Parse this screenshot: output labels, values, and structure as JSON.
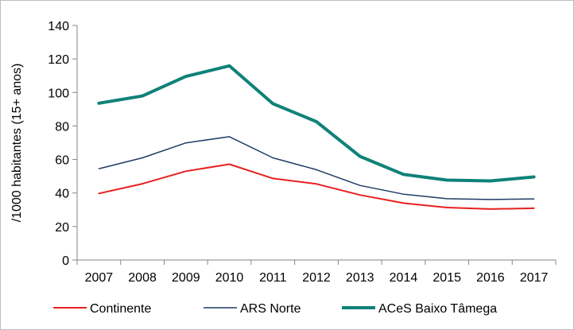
{
  "chart_data": {
    "type": "line",
    "title": "",
    "xlabel": "",
    "ylabel": "/1000 habitantes (15+ anos)",
    "ylim": [
      0,
      140
    ],
    "yticks": [
      0,
      20,
      40,
      60,
      80,
      100,
      120,
      140
    ],
    "categories": [
      "2007",
      "2008",
      "2009",
      "2010",
      "2011",
      "2012",
      "2013",
      "2014",
      "2015",
      "2016",
      "2017"
    ],
    "grid": false,
    "legend_position": "bottom",
    "series": [
      {
        "name": "Continente",
        "color": "#e8201f",
        "values": [
          39.7,
          45.5,
          53.0,
          57.2,
          48.7,
          45.4,
          38.8,
          34.0,
          31.3,
          30.4,
          30.9
        ]
      },
      {
        "name": "ARS Norte",
        "color": "#1f3c64",
        "values": [
          54.5,
          61.0,
          69.9,
          73.6,
          61.0,
          53.9,
          44.5,
          39.3,
          36.6,
          36.1,
          36.5
        ]
      },
      {
        "name": "ACeS Baixo Tâmega",
        "color": "#0f8278",
        "values": [
          93.6,
          97.9,
          109.6,
          115.9,
          93.3,
          82.6,
          61.9,
          51.1,
          47.7,
          47.2,
          49.6
        ]
      }
    ]
  }
}
